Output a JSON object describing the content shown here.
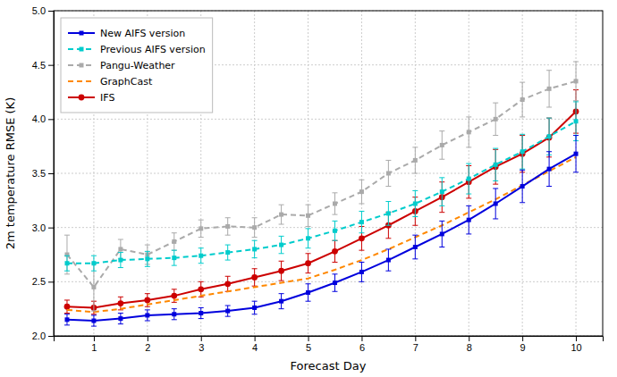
{
  "chart_data": {
    "type": "line",
    "xlabel": "Forecast Day",
    "ylabel": "2m temperature RMSE (K)",
    "xlim": [
      0.25,
      10.5
    ],
    "ylim": [
      2.0,
      5.0
    ],
    "xticks": [
      1,
      2,
      3,
      4,
      5,
      6,
      7,
      8,
      9,
      10
    ],
    "yticks": [
      {
        "value": 2.0,
        "label": "2.0"
      },
      2.5,
      {
        "value": 3.0,
        "label": "3.0"
      },
      3.5,
      {
        "value": 4.0,
        "label": "4.0"
      },
      4.5,
      {
        "value": 5.0,
        "label": "5.0"
      }
    ],
    "grid": true,
    "legend": "upper left",
    "series": [
      {
        "name": "New AIFS version",
        "color": "#0000dd",
        "line_style": "solid",
        "marker": "square",
        "x": [
          0.5,
          1.0,
          1.5,
          2.0,
          2.5,
          3.0,
          3.5,
          4.0,
          4.5,
          5.0,
          5.5,
          6.0,
          6.5,
          7.0,
          7.5,
          8.0,
          8.5,
          9.0,
          9.5,
          10.0
        ],
        "values": [
          2.15,
          2.14,
          2.16,
          2.19,
          2.2,
          2.21,
          2.23,
          2.26,
          2.32,
          2.4,
          2.49,
          2.59,
          2.7,
          2.82,
          2.94,
          3.07,
          3.22,
          3.38,
          3.54,
          3.68
        ],
        "errors": [
          0.05,
          0.05,
          0.05,
          0.05,
          0.05,
          0.05,
          0.05,
          0.06,
          0.07,
          0.08,
          0.08,
          0.09,
          0.1,
          0.11,
          0.12,
          0.13,
          0.14,
          0.15,
          0.16,
          0.17
        ]
      },
      {
        "name": "Previous AIFS version",
        "color": "#00cccc",
        "line_style": "dashed",
        "marker": "square",
        "x": [
          0.5,
          1.0,
          1.5,
          2.0,
          2.5,
          3.0,
          3.5,
          4.0,
          4.5,
          5.0,
          5.5,
          6.0,
          6.5,
          7.0,
          7.5,
          8.0,
          8.5,
          9.0,
          9.5,
          10.0
        ],
        "values": [
          2.67,
          2.67,
          2.7,
          2.71,
          2.72,
          2.74,
          2.77,
          2.8,
          2.84,
          2.9,
          2.97,
          3.05,
          3.13,
          3.22,
          3.33,
          3.45,
          3.58,
          3.7,
          3.84,
          3.98
        ],
        "errors": [
          0.07,
          0.07,
          0.07,
          0.07,
          0.07,
          0.07,
          0.07,
          0.08,
          0.08,
          0.09,
          0.09,
          0.1,
          0.11,
          0.12,
          0.13,
          0.14,
          0.15,
          0.16,
          0.17,
          0.18
        ]
      },
      {
        "name": "Pangu-Weather",
        "color": "#aaaaaa",
        "line_style": "dashed",
        "marker": "square",
        "x": [
          0.5,
          1.0,
          1.5,
          2.0,
          2.5,
          3.0,
          3.5,
          4.0,
          4.5,
          5.0,
          5.5,
          6.0,
          6.5,
          7.0,
          7.5,
          8.0,
          8.5,
          9.0,
          9.5,
          10.0
        ],
        "values": [
          2.75,
          2.45,
          2.8,
          2.75,
          2.87,
          2.99,
          3.01,
          3.0,
          3.12,
          3.11,
          3.22,
          3.33,
          3.5,
          3.62,
          3.76,
          3.88,
          4.0,
          4.18,
          4.28,
          4.35
        ],
        "errors": [
          0.18,
          0.22,
          0.09,
          0.09,
          0.08,
          0.08,
          0.08,
          0.09,
          0.09,
          0.1,
          0.1,
          0.11,
          0.12,
          0.12,
          0.13,
          0.14,
          0.15,
          0.16,
          0.17,
          0.18
        ]
      },
      {
        "name": "GraphCast",
        "color": "#ff8800",
        "line_style": "dashed",
        "x": [
          0.5,
          1.0,
          1.5,
          2.0,
          2.5,
          3.0,
          3.5,
          4.0,
          4.5,
          5.0,
          5.5,
          6.0,
          6.5,
          7.0,
          7.5,
          8.0,
          8.5,
          9.0,
          9.5,
          10.0
        ],
        "values": [
          2.24,
          2.22,
          2.25,
          2.29,
          2.33,
          2.37,
          2.41,
          2.45,
          2.49,
          2.53,
          2.61,
          2.7,
          2.8,
          2.91,
          3.02,
          3.14,
          3.26,
          3.39,
          3.52,
          3.65
        ]
      },
      {
        "name": "IFS",
        "color": "#cc0000",
        "line_style": "solid",
        "marker": "circle",
        "x": [
          0.5,
          1.0,
          1.5,
          2.0,
          2.5,
          3.0,
          3.5,
          4.0,
          4.5,
          5.0,
          5.5,
          6.0,
          6.5,
          7.0,
          7.5,
          8.0,
          8.5,
          9.0,
          9.5,
          10.0
        ],
        "values": [
          2.27,
          2.26,
          2.3,
          2.33,
          2.37,
          2.43,
          2.48,
          2.54,
          2.6,
          2.67,
          2.78,
          2.9,
          3.02,
          3.15,
          3.28,
          3.42,
          3.56,
          3.68,
          3.83,
          4.07
        ],
        "errors": [
          0.06,
          0.06,
          0.06,
          0.06,
          0.06,
          0.07,
          0.07,
          0.08,
          0.09,
          0.09,
          0.1,
          0.11,
          0.12,
          0.13,
          0.14,
          0.15,
          0.16,
          0.17,
          0.18,
          0.2
        ]
      }
    ]
  }
}
